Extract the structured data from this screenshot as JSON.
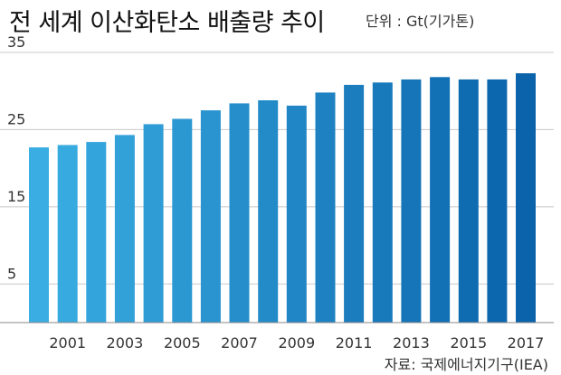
{
  "chart_data": {
    "type": "bar",
    "title": "전 세계 이산화탄소 배출량 추이",
    "unit": "단위 : Gt(기가톤)",
    "source": "자료: 국제에너지기구(IEA)",
    "x": [
      2000,
      2001,
      2002,
      2003,
      2004,
      2005,
      2006,
      2007,
      2008,
      2009,
      2010,
      2011,
      2012,
      2013,
      2014,
      2015,
      2016,
      2017
    ],
    "x_tick_labels": [
      "2001",
      "2003",
      "2005",
      "2007",
      "2009",
      "2011",
      "2013",
      "2015",
      "2017"
    ],
    "values": [
      22.7,
      23.0,
      23.4,
      24.3,
      25.7,
      26.4,
      27.5,
      28.4,
      28.8,
      28.1,
      29.8,
      30.8,
      31.1,
      31.5,
      31.8,
      31.5,
      31.5,
      32.3
    ],
    "y_tick_labels": [
      "5",
      "15",
      "25",
      "35"
    ],
    "ylim": [
      0,
      35
    ],
    "grid": true,
    "colors": {
      "bar_start": "#3aaee2",
      "bar_end": "#0a63ab",
      "grid": "#c8c8c8",
      "axis": "#888888"
    }
  }
}
